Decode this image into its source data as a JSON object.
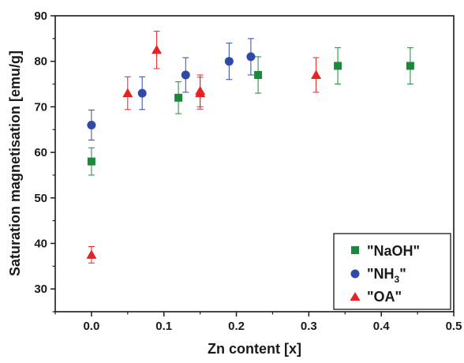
{
  "chart_data": {
    "type": "scatter",
    "title": "",
    "xlabel": "Zn content [x]",
    "ylabel": "Saturation magnetisation [emu/g]",
    "xlim": [
      -0.05,
      0.5
    ],
    "ylim": [
      25,
      90
    ],
    "x_ticks": [
      "0.0",
      "0.1",
      "0.2",
      "0.3",
      "0.4",
      "0.5"
    ],
    "x_tick_values": [
      0.0,
      0.1,
      0.2,
      0.3,
      0.4,
      0.5
    ],
    "y_ticks": [
      "30",
      "40",
      "50",
      "60",
      "70",
      "80",
      "90"
    ],
    "y_tick_values": [
      30,
      40,
      50,
      60,
      70,
      80,
      90
    ],
    "legend_position": "bottom-right",
    "grid": false,
    "series": [
      {
        "name": "\"NaOH\"",
        "marker": "square",
        "color": "#1a8a3a",
        "x": [
          0.0,
          0.12,
          0.23,
          0.34,
          0.44
        ],
        "y": [
          58,
          72,
          77,
          79,
          79
        ],
        "err": [
          3,
          3.5,
          4,
          4,
          4
        ]
      },
      {
        "name": "\"NH3\"",
        "legend_base": "\"NH",
        "legend_sub": "3",
        "legend_end": "\"",
        "marker": "circle",
        "color": "#2f49a8",
        "x": [
          0.0,
          0.07,
          0.13,
          0.19,
          0.22
        ],
        "y": [
          66,
          73,
          77,
          80,
          81
        ],
        "err": [
          3.3,
          3.6,
          3.8,
          4,
          4
        ]
      },
      {
        "name": "\"OA\"",
        "marker": "triangle",
        "color": "#e82222",
        "x": [
          0.0,
          0.05,
          0.09,
          0.15,
          0.15,
          0.31
        ],
        "y": [
          37.5,
          73,
          82.5,
          73.5,
          73,
          77
        ],
        "err": [
          1.8,
          3.6,
          4.1,
          3.5,
          3.5,
          3.8
        ]
      }
    ]
  }
}
